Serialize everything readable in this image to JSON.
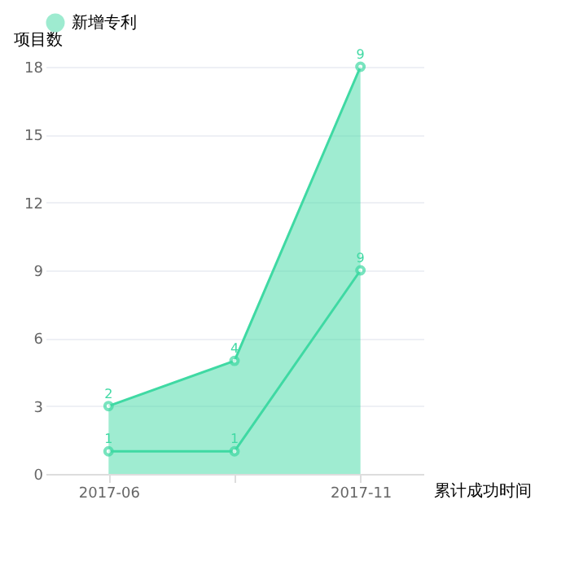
{
  "chart_data": {
    "type": "area",
    "stacked": true,
    "xlabel": "累计成功时间",
    "ylabel": "项目数",
    "categories": [
      "2017-06",
      null,
      "2017-11"
    ],
    "series": [
      {
        "name": "新增专利",
        "color": "#3fd9a3",
        "values": [
          1,
          1,
          9
        ]
      },
      {
        "color": "#3fd9a3",
        "values": [
          2,
          4,
          9
        ]
      }
    ],
    "ylim": [
      0,
      18
    ],
    "yticks": [
      0,
      3,
      6,
      9,
      12,
      15,
      18
    ],
    "grid": "y",
    "legend": "top",
    "marker": "circle",
    "data_labels": true
  }
}
